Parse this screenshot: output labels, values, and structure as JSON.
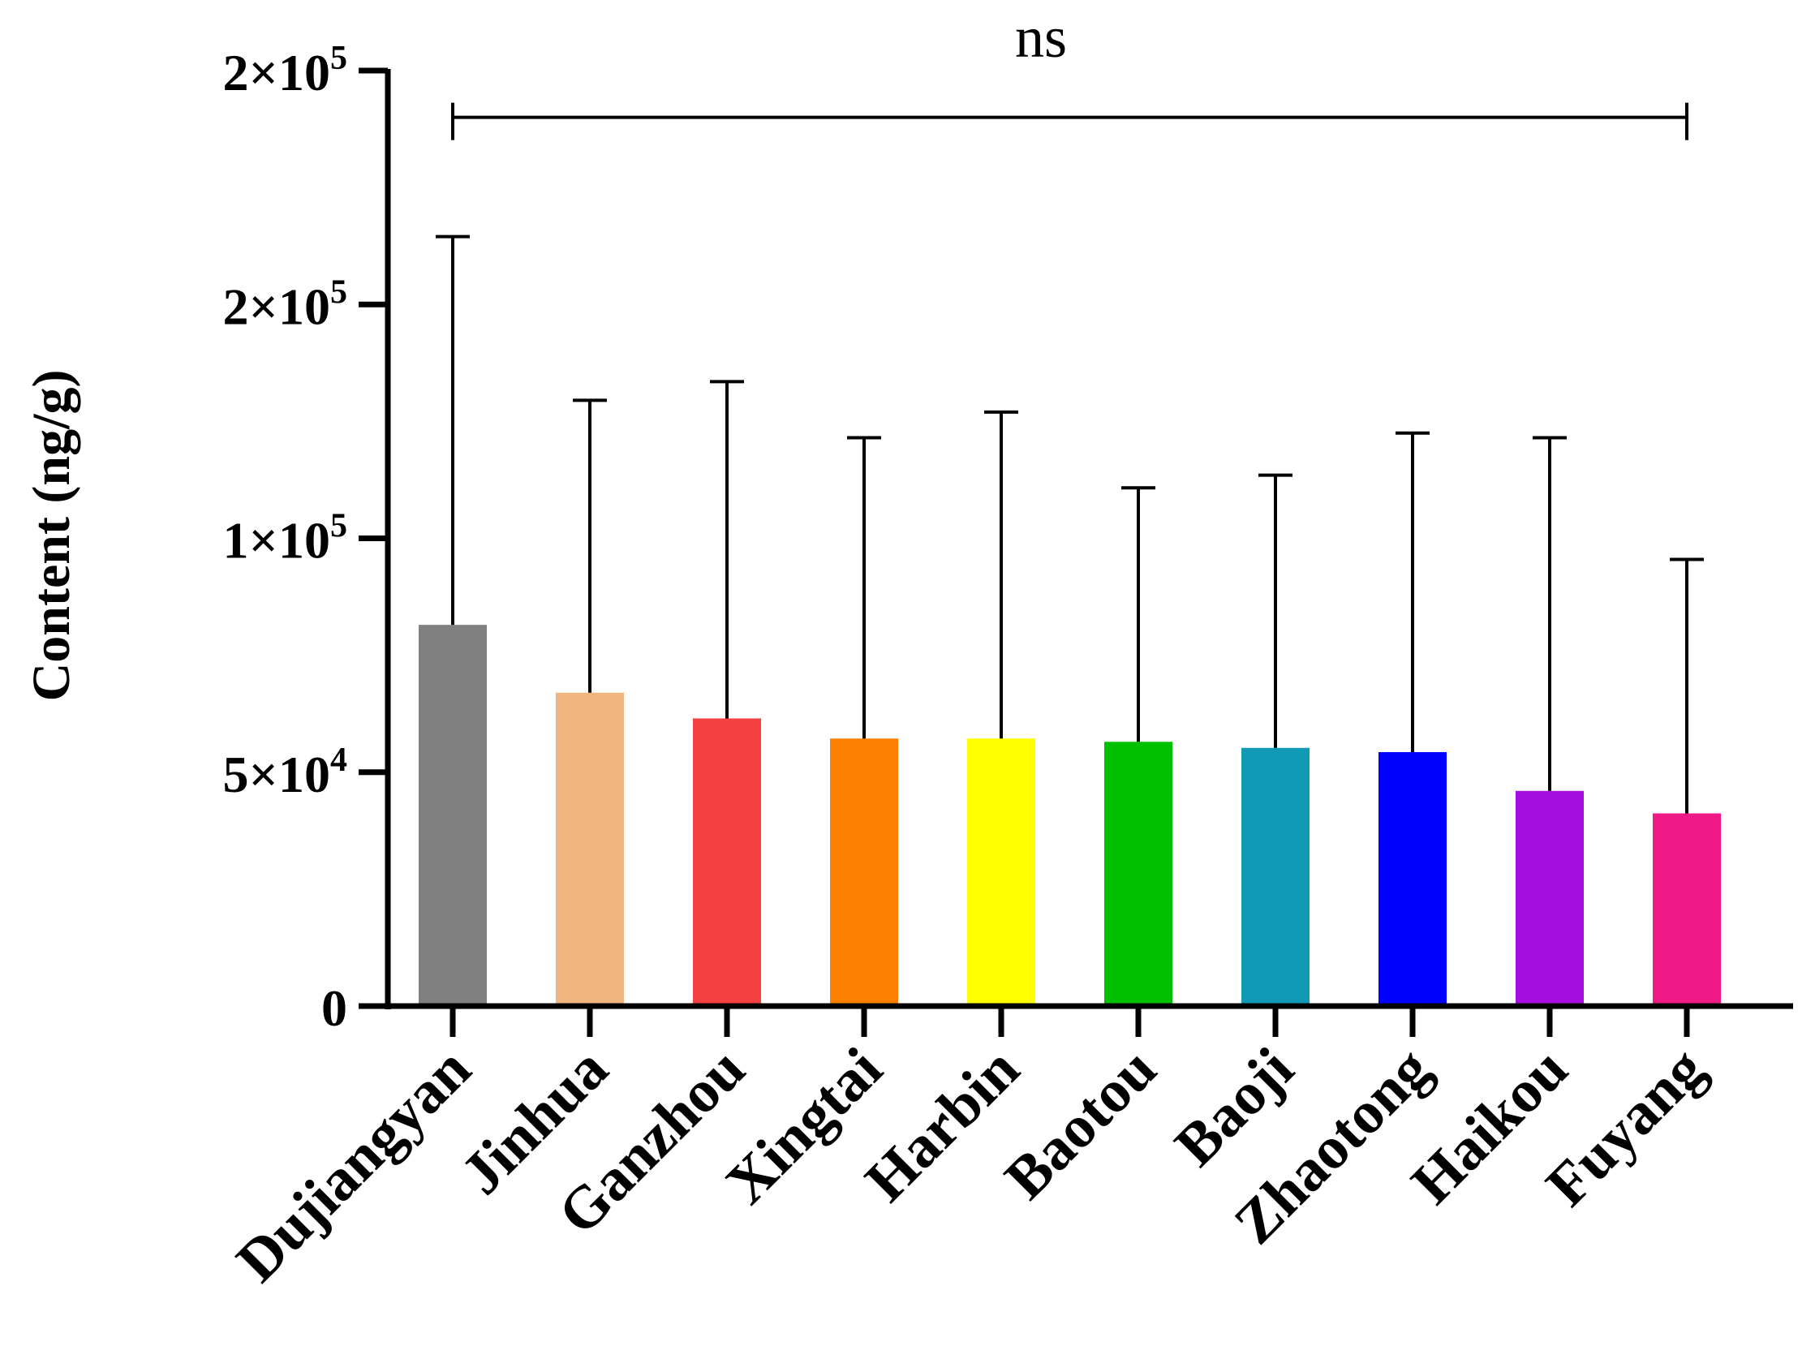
{
  "chart_data": {
    "type": "bar",
    "title": "",
    "xlabel": "",
    "ylabel": "Content (ng/g)",
    "ylim": [
      0,
      200000
    ],
    "categories": [
      "Dujiangyan",
      "Jinhua",
      "Ganzhou",
      "Xingtai",
      "Harbin",
      "Baotou",
      "Baoji",
      "Zhaotong",
      "Haikou",
      "Fuyang"
    ],
    "values": [
      81500,
      67000,
      61500,
      57200,
      57200,
      56500,
      55200,
      54300,
      46000,
      41200
    ],
    "error_upper": [
      164500,
      129500,
      133500,
      121500,
      127000,
      110800,
      113500,
      122500,
      121500,
      95500
    ],
    "colors": [
      "#808080",
      "#F0B47F",
      "#F44040",
      "#FF7F00",
      "#FFFF00",
      "#00C000",
      "#119AB6",
      "#0000FF",
      "#A60EE0",
      "#F01A87"
    ],
    "y_ticks": [
      {
        "value": 0,
        "mantissa": "0",
        "exponent": ""
      },
      {
        "value": 50000,
        "mantissa": "5×10",
        "exponent": "4"
      },
      {
        "value": 100000,
        "mantissa": "1×10",
        "exponent": "5"
      },
      {
        "value": 150000,
        "mantissa": "2×10",
        "exponent": "5"
      },
      {
        "value": 200000,
        "mantissa": "2×10",
        "exponent": "5"
      }
    ],
    "significance": {
      "label": "ns",
      "from": "Dujiangyan",
      "to": "Fuyang",
      "value": 190000
    }
  }
}
